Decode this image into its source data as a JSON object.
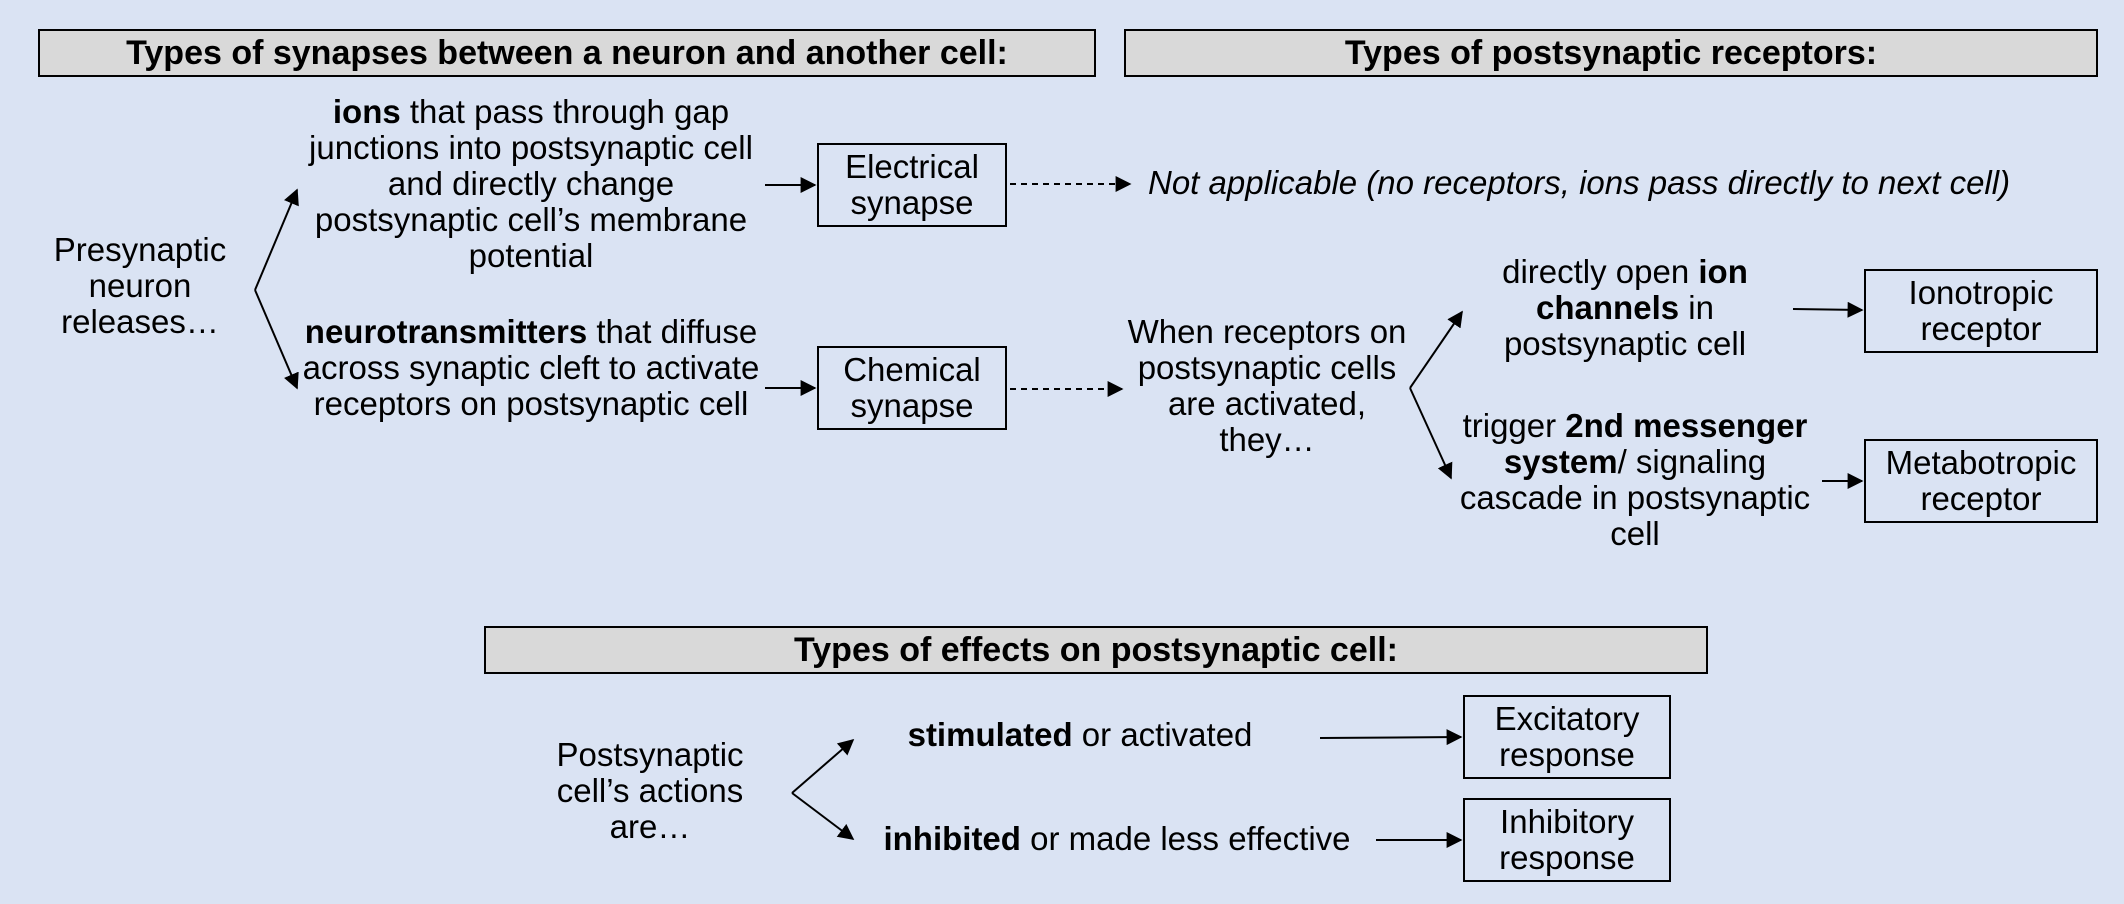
{
  "headers": {
    "synapse_types": "Types of synapses between a neuron and another cell:",
    "receptor_types": "Types of postsynaptic receptors:",
    "effect_types": "Types of effects on postsynaptic cell:"
  },
  "synapses": {
    "presynaptic_label": "Presynaptic neuron releases…",
    "ions": {
      "bold": "ions",
      "rest": " that pass through gap junctions into postsynaptic cell and directly change postsynaptic cell’s membrane potential"
    },
    "neurotransmitters": {
      "bold": "neurotransmitters",
      "rest": " that diffuse across synaptic cleft to activate receptors on postsynaptic cell"
    },
    "electrical_synapse": "Electrical synapse",
    "chemical_synapse": "Chemical synapse"
  },
  "receptors": {
    "not_applicable": "Not applicable (no receptors, ions pass directly to next cell)",
    "activated_label": "When receptors on postsynaptic cells are activated, they…",
    "ion_channels": {
      "pre": "directly open ",
      "bold": "ion channels",
      "post": " in postsynaptic cell"
    },
    "second_messenger": {
      "pre": "trigger ",
      "bold": "2nd messenger system",
      "post": "/ signaling cascade in postsynaptic cell"
    },
    "ionotropic": "Ionotropic receptor",
    "metabotropic": "Metabotropic receptor"
  },
  "effects": {
    "actions_label": "Postsynaptic cell’s actions are…",
    "stimulated": {
      "bold": "stimulated",
      "rest": " or activated"
    },
    "inhibited": {
      "bold": "inhibited",
      "rest": " or made less effective"
    },
    "excitatory": "Excitatory response",
    "inhibitory": "Inhibitory response"
  }
}
